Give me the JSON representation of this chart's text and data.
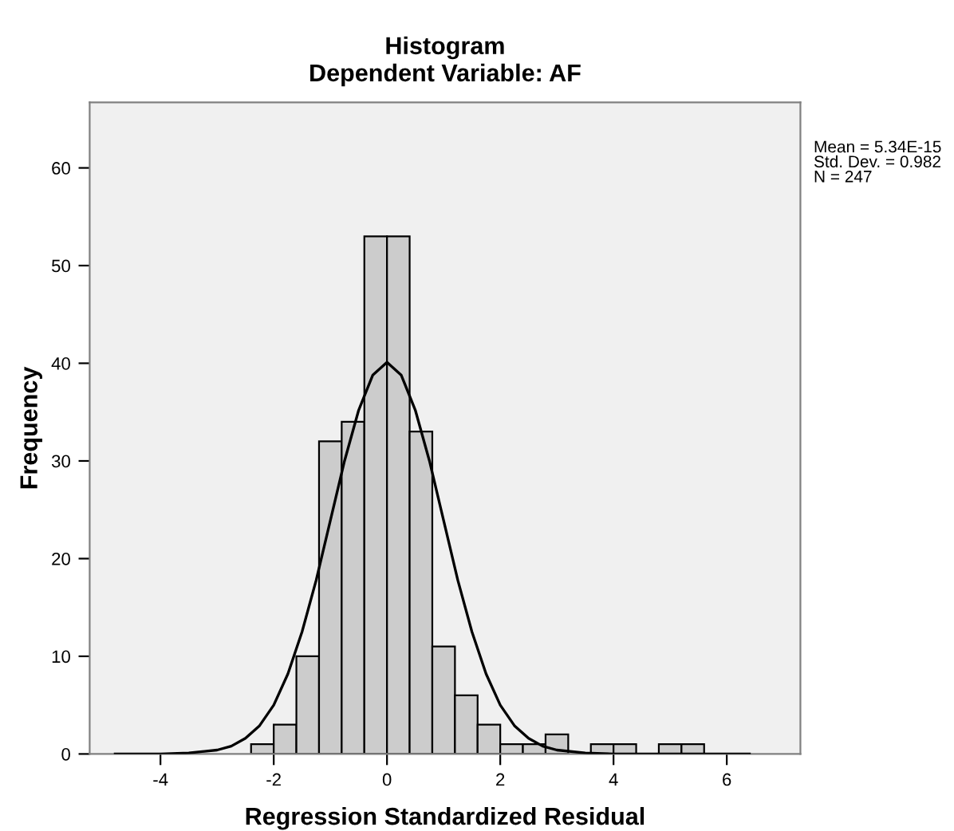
{
  "chart_data": {
    "type": "histogram",
    "title": "Histogram",
    "subtitle": "Dependent Variable: AF",
    "xlabel": "Regression Standardized Residual",
    "ylabel": "Frequency",
    "series": [
      {
        "type": "histogram",
        "color": "#cccccc",
        "bins": [
          -2.4,
          -2.0,
          -1.6,
          -1.2,
          -0.8,
          -0.4,
          0,
          0.4,
          0.8,
          1.2,
          1.6,
          2.0,
          2.4,
          2.8,
          3.2,
          3.6,
          4.0,
          4.4,
          4.8,
          5.2,
          5.6
        ],
        "values": [
          1,
          3,
          10,
          32,
          34,
          53,
          53,
          33,
          11,
          6,
          3,
          1,
          1,
          2,
          0,
          1,
          1,
          0,
          1,
          1
        ]
      },
      {
        "type": "line",
        "color": "#000000",
        "x": [
          -4.8,
          -4,
          -3.5,
          -3,
          -2.75,
          -2.5,
          -2.25,
          -2,
          -1.75,
          -1.5,
          -1.25,
          -1,
          -0.75,
          -0.5,
          -0.25,
          0,
          0.25,
          0.5,
          0.75,
          1,
          1.25,
          1.5,
          1.75,
          2,
          2.25,
          2.5,
          2.75,
          3,
          3.5,
          4,
          5,
          6.4
        ],
        "values": [
          0,
          0,
          0.1,
          0.4,
          0.8,
          1.6,
          2.9,
          5.0,
          8.2,
          12.5,
          17.8,
          23.9,
          30.0,
          35.2,
          38.8,
          40.1,
          38.8,
          35.2,
          30.0,
          23.9,
          17.8,
          12.5,
          8.2,
          5.0,
          2.9,
          1.6,
          0.8,
          0.4,
          0.1,
          0,
          0,
          0
        ]
      }
    ],
    "xlim": [
      -5.25,
      7.3
    ],
    "ylim": [
      0,
      66.7
    ],
    "xticks": [
      -4,
      -2,
      0,
      2,
      4,
      6
    ],
    "yticks": [
      0,
      10,
      20,
      30,
      40,
      50,
      60
    ],
    "grid": false,
    "annotations": [
      "Mean = 5.34E-15\nStd. Dev. = 0.982\nN = 247"
    ]
  }
}
